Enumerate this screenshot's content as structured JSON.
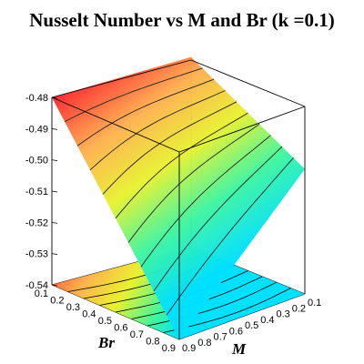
{
  "chart_data": {
    "type": "surface3d",
    "title": "Nusselt Number vs M and Br (k =0.1)",
    "xlabel": "Br",
    "ylabel": "M",
    "zlabel": "",
    "x_ticks": [
      "0.1",
      "0.2",
      "0.3",
      "0.4",
      "0.5",
      "0.6",
      "0.7",
      "0.8",
      "0.9"
    ],
    "y_ticks": [
      "0.1",
      "0.2",
      "0.3",
      "0.4",
      "0.5",
      "0.6",
      "0.7",
      "0.8",
      "0.9"
    ],
    "z_ticks": [
      "-0.48",
      "-0.49",
      "-0.50",
      "-0.51",
      "-0.52",
      "-0.53",
      "-0.54"
    ],
    "xlim": [
      0.1,
      0.9
    ],
    "ylim": [
      0.1,
      0.9
    ],
    "zlim": [
      -0.54,
      -0.48
    ],
    "corner_values": {
      "Br0.1_M0.9": -0.48,
      "Br0.1_M0.1": -0.479,
      "Br0.9_M0.9": -0.54,
      "Br0.9_M0.1": -0.5
    },
    "colormap": [
      "#00e0ff",
      "#3df5a0",
      "#e8f230",
      "#ffb050",
      "#ff3030"
    ],
    "box": true,
    "contours": true
  }
}
